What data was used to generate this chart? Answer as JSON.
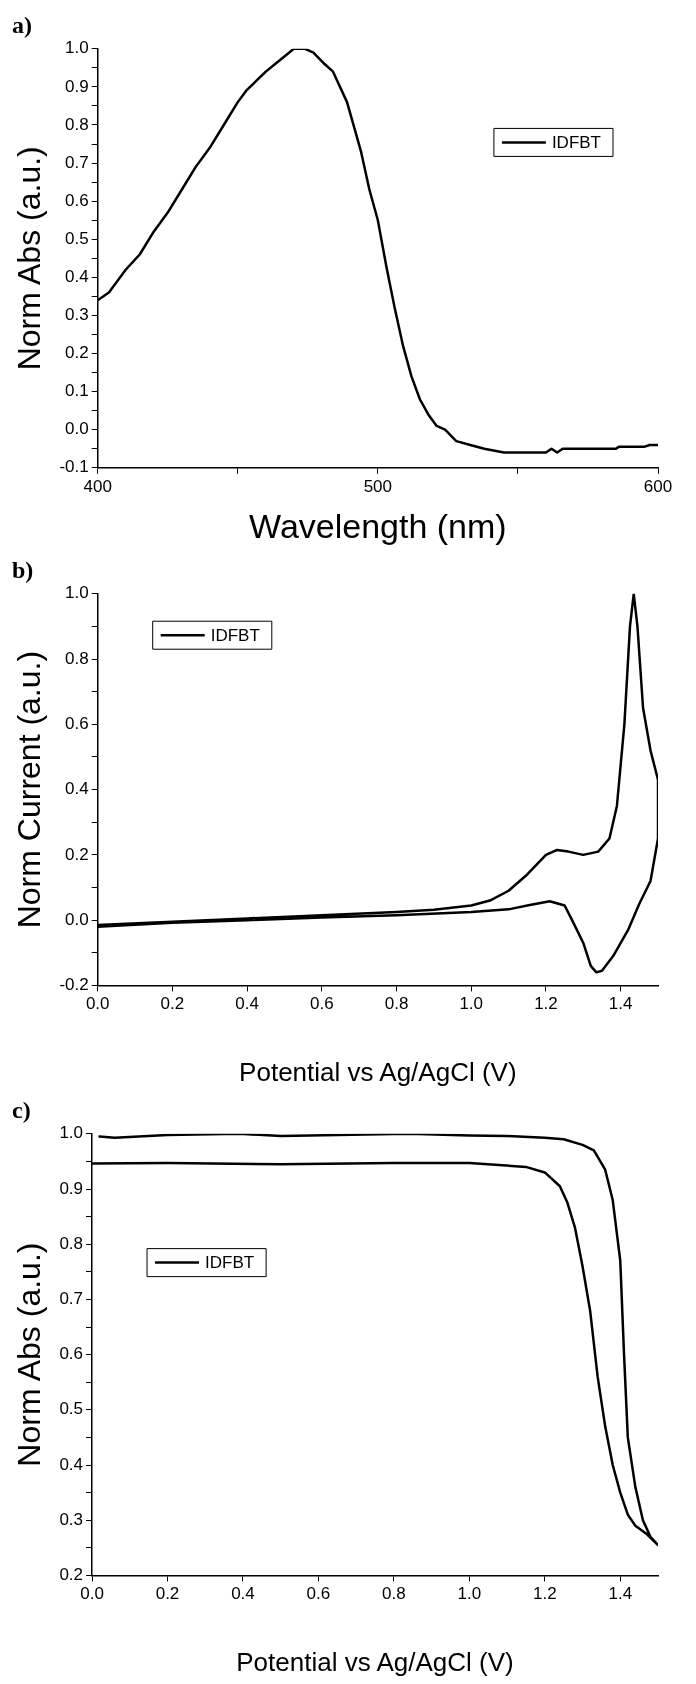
{
  "chart_data": [
    {
      "type": "line",
      "title": "a)",
      "xlabel": "Wavelength (nm)",
      "ylabel": "Norm Abs (a.u.)",
      "xlim": [
        400,
        600
      ],
      "xticks": [
        400,
        {
          "value": 450,
          "label": null
        },
        500,
        {
          "value": 550,
          "label": null
        },
        600
      ],
      "ylim": [
        -0.1,
        1.0
      ],
      "yticks": [
        -0.1,
        {
          "value": -0.05,
          "label": null
        },
        {
          "value": 0,
          "label": "0.0"
        },
        {
          "value": 0.05,
          "label": null
        },
        0.1,
        {
          "value": 0.15,
          "label": null
        },
        0.2,
        {
          "value": 0.25,
          "label": null
        },
        0.3,
        {
          "value": 0.35,
          "label": null
        },
        0.4,
        {
          "value": 0.45,
          "label": null
        },
        0.5,
        {
          "value": 0.55,
          "label": null
        },
        0.6,
        {
          "value": 0.65,
          "label": null
        },
        0.7,
        {
          "value": 0.75,
          "label": null
        },
        0.8,
        {
          "value": 0.85,
          "label": null
        },
        0.9,
        {
          "value": 0.95,
          "label": null
        },
        {
          "value": 1,
          "label": "1.0"
        }
      ],
      "grid": false,
      "legend": "top right",
      "marker": "none",
      "line_style": "solid",
      "series": [
        {
          "name": "IDFBT",
          "color": "#000000",
          "x": [
            400,
            404,
            410,
            415,
            420,
            425,
            430,
            435,
            440,
            445,
            450,
            453,
            460,
            465,
            470,
            474,
            477,
            481,
            484,
            489,
            494,
            497,
            500,
            503,
            506,
            509,
            512,
            515,
            518,
            521,
            524,
            528,
            533,
            538,
            545,
            555,
            560,
            562,
            564,
            566,
            580,
            585,
            586,
            595,
            597,
            600
          ],
          "values": [
            0.34,
            0.36,
            0.42,
            0.46,
            0.52,
            0.57,
            0.63,
            0.69,
            0.74,
            0.8,
            0.86,
            0.89,
            0.94,
            0.97,
            1.0,
            1.0,
            0.99,
            0.96,
            0.94,
            0.86,
            0.73,
            0.63,
            0.55,
            0.43,
            0.32,
            0.22,
            0.14,
            0.08,
            0.04,
            0.01,
            0.0,
            -0.03,
            -0.04,
            -0.05,
            -0.06,
            -0.06,
            -0.06,
            -0.05,
            -0.06,
            -0.05,
            -0.05,
            -0.05,
            -0.045,
            -0.045,
            -0.04,
            -0.04
          ]
        }
      ]
    },
    {
      "type": "line",
      "title": "b)",
      "xlabel": "Potential vs Ag/AgCl (V)",
      "ylabel": "Norm Current (a.u.)",
      "xlim": [
        0,
        1.5
      ],
      "xticks": [
        {
          "value": 0,
          "label": "0.0"
        },
        0.2,
        0.4,
        0.6,
        0.8,
        {
          "value": 1,
          "label": "1.0"
        },
        1.2,
        1.4
      ],
      "ylim": [
        -0.2,
        1.0
      ],
      "yticks": [
        -0.2,
        {
          "value": -0.1,
          "label": null
        },
        {
          "value": 0,
          "label": "0.0"
        },
        {
          "value": 0.1,
          "label": null
        },
        0.2,
        {
          "value": 0.3,
          "label": null
        },
        0.4,
        {
          "value": 0.5,
          "label": null
        },
        0.6,
        {
          "value": 0.7,
          "label": null
        },
        0.8,
        {
          "value": 0.9,
          "label": null
        },
        {
          "value": 1,
          "label": "1.0"
        }
      ],
      "grid": false,
      "legend": "top left",
      "marker": "none",
      "line_style": "solid",
      "series": [
        {
          "name": "IDFBT",
          "color": "#000000",
          "x": [
            0,
            0.2,
            0.4,
            0.6,
            0.8,
            0.9,
            1.0,
            1.05,
            1.1,
            1.15,
            1.2,
            1.23,
            1.26,
            1.3,
            1.34,
            1.37,
            1.39,
            1.41,
            1.425,
            1.435,
            1.445,
            1.46,
            1.48,
            1.5,
            1.5,
            1.48,
            1.45,
            1.42,
            1.38,
            1.35,
            1.335,
            1.32,
            1.3,
            1.27,
            1.25,
            1.21,
            1.15,
            1.1,
            1.0,
            0.8,
            0.6,
            0.4,
            0.2,
            0
          ],
          "values": [
            -0.015,
            -0.005,
            0.005,
            0.015,
            0.025,
            0.032,
            0.045,
            0.06,
            0.09,
            0.14,
            0.2,
            0.215,
            0.21,
            0.2,
            0.21,
            0.25,
            0.35,
            0.6,
            0.9,
            1.0,
            0.9,
            0.65,
            0.52,
            0.43,
            0.25,
            0.12,
            0.05,
            -0.03,
            -0.11,
            -0.155,
            -0.16,
            -0.14,
            -0.07,
            0.0,
            0.045,
            0.058,
            0.045,
            0.033,
            0.025,
            0.015,
            0.008,
            0.0,
            -0.008,
            -0.02
          ]
        }
      ]
    },
    {
      "type": "line",
      "title": "c)",
      "xlabel": "Potential vs Ag/AgCl (V)",
      "ylabel": "Norm Abs (a.u.)",
      "xlim": [
        0,
        1.5
      ],
      "xticks": [
        {
          "value": 0,
          "label": "0.0"
        },
        0.2,
        0.4,
        0.6,
        0.8,
        {
          "value": 1,
          "label": "1.0"
        },
        1.2,
        1.4
      ],
      "ylim": [
        0.2,
        1.0
      ],
      "yticks": [
        0.2,
        {
          "value": 0.25,
          "label": null
        },
        0.3,
        {
          "value": 0.35,
          "label": null
        },
        0.4,
        {
          "value": 0.45,
          "label": null
        },
        0.5,
        {
          "value": 0.55,
          "label": null
        },
        0.6,
        {
          "value": 0.65,
          "label": null
        },
        0.7,
        {
          "value": 0.75,
          "label": null
        },
        0.8,
        {
          "value": 0.85,
          "label": null
        },
        0.9,
        {
          "value": 0.95,
          "label": null
        },
        {
          "value": 1,
          "label": "1.0"
        }
      ],
      "grid": false,
      "legend": "top left",
      "marker": "none",
      "line_style": "solid",
      "series": [
        {
          "name": "IDFBT",
          "color": "#000000",
          "x": [
            0.02,
            0.06,
            0.2,
            0.39,
            0.5,
            0.84,
            1.0,
            1.1,
            1.2,
            1.25,
            1.3,
            1.33,
            1.36,
            1.38,
            1.4,
            1.41,
            1.42,
            1.44,
            1.46,
            1.48,
            1.5,
            1.47,
            1.44,
            1.42,
            1.4,
            1.38,
            1.36,
            1.34,
            1.32,
            1.3,
            1.28,
            1.26,
            1.24,
            1.2,
            1.15,
            1.0,
            0.8,
            0.5,
            0.2,
            0.0
          ],
          "values": [
            0.995,
            0.993,
            0.998,
            1.0,
            0.996,
            1.0,
            0.997,
            0.996,
            0.993,
            0.99,
            0.98,
            0.97,
            0.935,
            0.88,
            0.77,
            0.6,
            0.45,
            0.36,
            0.3,
            0.27,
            0.255,
            0.275,
            0.29,
            0.31,
            0.35,
            0.4,
            0.47,
            0.56,
            0.68,
            0.76,
            0.83,
            0.875,
            0.905,
            0.93,
            0.94,
            0.947,
            0.947,
            0.945,
            0.947,
            0.946
          ]
        }
      ]
    }
  ]
}
